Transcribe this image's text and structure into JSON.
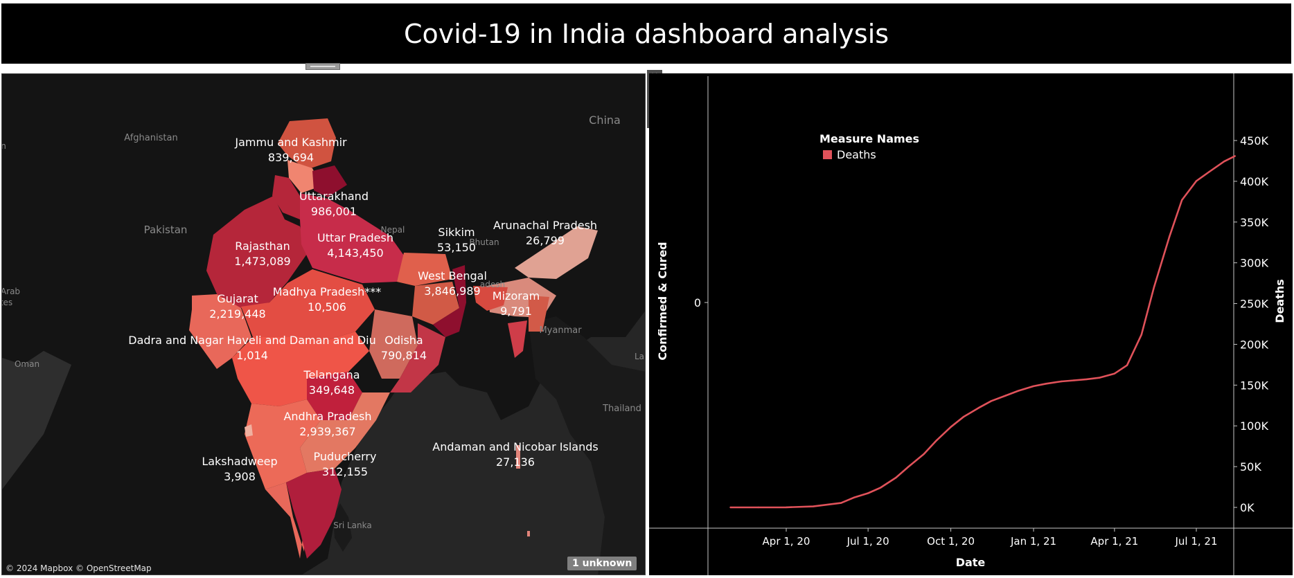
{
  "title": "Covid-19 in India dashboard analysis",
  "map": {
    "attribution": "© 2024 Mapbox © OpenStreetMap",
    "unknown_badge": "1 unknown",
    "countries": [
      "China",
      "Afghanistan",
      "Pakistan",
      "Nepal",
      "Bhutan",
      "Myanmar",
      "Oman",
      "Sri Lanka",
      "Thailand",
      "Arab",
      "tes",
      "n",
      "La",
      "adesh"
    ],
    "states": [
      {
        "name": "Jammu and Kashmir",
        "value": "839,694"
      },
      {
        "name": "Uttarakhand",
        "value": "986,001"
      },
      {
        "name": "Rajasthan",
        "value": "1,473,089"
      },
      {
        "name": "Uttar Pradesh",
        "value": "4,143,450"
      },
      {
        "name": "Sikkim",
        "value": "53,150"
      },
      {
        "name": "Arunachal Pradesh",
        "value": "26,799"
      },
      {
        "name": "West Bengal",
        "value": "3,846,989"
      },
      {
        "name": "Mizoram",
        "value": "9,791"
      },
      {
        "name": "Gujarat",
        "value": "2,219,448"
      },
      {
        "name": "Madhya Pradesh***",
        "value": "10,506"
      },
      {
        "name": "Dadra and Nagar Haveli and Daman and Diu",
        "value": "1,014"
      },
      {
        "name": "Odisha",
        "value": "790,814"
      },
      {
        "name": "Telangana",
        "value": "349,648"
      },
      {
        "name": "Andhra Pradesh",
        "value": "2,939,367"
      },
      {
        "name": "Puducherry",
        "value": "312,155"
      },
      {
        "name": "Lakshadweep",
        "value": "3,908"
      },
      {
        "name": "Andaman and Nicobar Islands",
        "value": "27,136"
      }
    ],
    "colors": {
      "dark": "#8e0f2e",
      "mid": "#d93b48",
      "light": "#f08570",
      "pale": "#e8a79a"
    }
  },
  "tools": {
    "close": "✕",
    "popout": "⧉",
    "filter": "⊤",
    "more": "▾"
  },
  "chart_data": {
    "type": "line",
    "title": "",
    "xlabel": "Date",
    "ylabel_left": "Confirmed & Cured",
    "ylabel_right": "Deaths",
    "legend_title": "Measure Names",
    "legend_position": "top-left",
    "grid": false,
    "x_ticks": [
      "Apr 1, 20",
      "Jul 1, 20",
      "Oct 1, 20",
      "Jan 1, 21",
      "Apr 1, 21",
      "Jul 1, 21"
    ],
    "left_ticks": [
      "0"
    ],
    "right_ticks": [
      "0K",
      "50K",
      "100K",
      "150K",
      "200K",
      "250K",
      "300K",
      "350K",
      "400K",
      "450K"
    ],
    "ylim_right": [
      0,
      450000
    ],
    "xlim": [
      "2020-01-30",
      "2021-08-20"
    ],
    "series": [
      {
        "name": "Deaths",
        "color": "#e0525a",
        "axis": "right",
        "x": [
          "2020-01-30",
          "2020-03-01",
          "2020-04-01",
          "2020-05-01",
          "2020-06-01",
          "2020-06-15",
          "2020-07-01",
          "2020-07-15",
          "2020-08-01",
          "2020-08-15",
          "2020-09-01",
          "2020-09-15",
          "2020-10-01",
          "2020-10-15",
          "2020-11-01",
          "2020-11-15",
          "2020-12-01",
          "2020-12-15",
          "2021-01-01",
          "2021-01-15",
          "2021-02-01",
          "2021-02-15",
          "2021-03-01",
          "2021-03-15",
          "2021-04-01",
          "2021-04-15",
          "2021-05-01",
          "2021-05-15",
          "2021-06-01",
          "2021-06-15",
          "2021-07-01",
          "2021-07-15",
          "2021-08-01",
          "2021-08-13"
        ],
        "values": [
          0,
          0,
          50,
          1200,
          5400,
          12000,
          17400,
          24300,
          36500,
          50000,
          65400,
          82000,
          98700,
          111000,
          122100,
          130500,
          137100,
          143000,
          148700,
          151700,
          154500,
          155800,
          157200,
          159000,
          164100,
          174300,
          211900,
          270300,
          331900,
          377000,
          400300,
          411400,
          424400,
          431000
        ]
      }
    ]
  }
}
